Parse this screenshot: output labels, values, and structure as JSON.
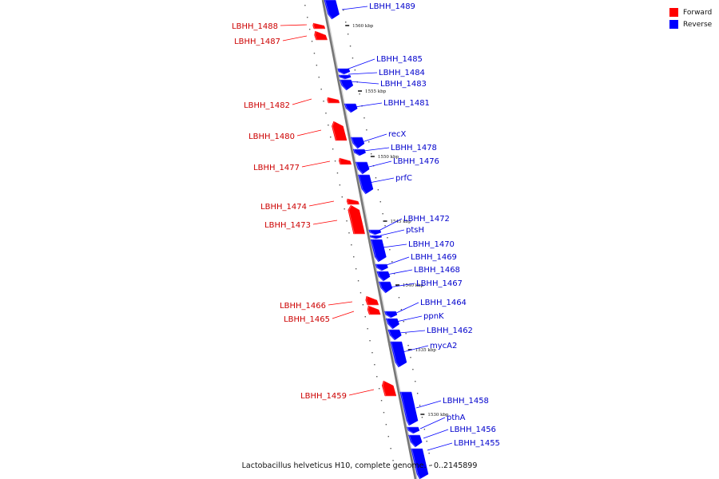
{
  "legend": {
    "forward": {
      "label": "Forward",
      "color": "#ff0000"
    },
    "reverse": {
      "label": "Reverse",
      "color": "#0000ff"
    }
  },
  "caption": "Lactobacillus helveticus H10, complete genome. - 0..2145899",
  "chart_data": {
    "type": "genome-map",
    "ticks": [
      {
        "label": "1560 kbp"
      },
      {
        "label": "1555 kbp"
      },
      {
        "label": "1550 kbp"
      },
      {
        "label": "1545 kbp"
      },
      {
        "label": "1540 kbp"
      },
      {
        "label": "1535 kbp"
      },
      {
        "label": "1530 kbp"
      }
    ],
    "forward_genes": [
      {
        "label": "LBHH_1488"
      },
      {
        "label": "LBHH_1487"
      },
      {
        "label": "LBHH_1482"
      },
      {
        "label": "LBHH_1480"
      },
      {
        "label": "LBHH_1477"
      },
      {
        "label": "LBHH_1474"
      },
      {
        "label": "LBHH_1473"
      },
      {
        "label": "LBHH_1466"
      },
      {
        "label": "LBHH_1465"
      },
      {
        "label": "LBHH_1459"
      }
    ],
    "reverse_genes": [
      {
        "label": "LBHH_1489"
      },
      {
        "label": "LBHH_1485"
      },
      {
        "label": "LBHH_1484"
      },
      {
        "label": "LBHH_1483"
      },
      {
        "label": "LBHH_1481"
      },
      {
        "label": "recX"
      },
      {
        "label": "LBHH_1478"
      },
      {
        "label": "LBHH_1476"
      },
      {
        "label": "prfC"
      },
      {
        "label": "LBHH_1472"
      },
      {
        "label": "ptsH"
      },
      {
        "label": "LBHH_1470"
      },
      {
        "label": "LBHH_1469"
      },
      {
        "label": "LBHH_1468"
      },
      {
        "label": "LBHH_1467"
      },
      {
        "label": "LBHH_1464"
      },
      {
        "label": "ppnK"
      },
      {
        "label": "LBHH_1462"
      },
      {
        "label": "mycA2"
      },
      {
        "label": "LBHH_1458"
      },
      {
        "label": "pthA"
      },
      {
        "label": "LBHH_1456"
      },
      {
        "label": "LBHH_1455"
      }
    ]
  }
}
